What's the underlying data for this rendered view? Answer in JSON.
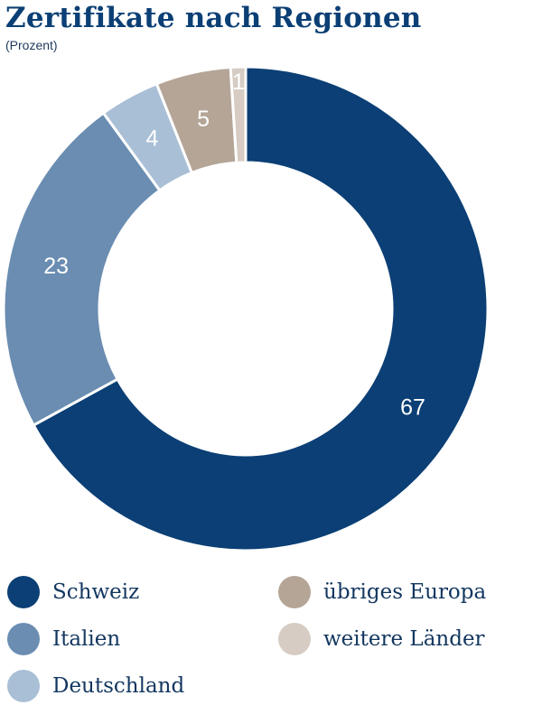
{
  "chart_data": {
    "type": "pie",
    "style": "donut",
    "title": "Zertifikate nach Regionen",
    "subtitle": "(Prozent)",
    "categories": [
      "Schweiz",
      "Italien",
      "Deutschland",
      "übriges Europa",
      "weitere Länder"
    ],
    "values": [
      67,
      23,
      4,
      5,
      1
    ],
    "colors": [
      "#0b3f75",
      "#6a8db1",
      "#a9bfd6",
      "#b4a597",
      "#d6ccc3"
    ],
    "legend_position": "bottom",
    "legend_order": [
      "Schweiz",
      "übriges Europa",
      "Italien",
      "weitere Länder",
      "Deutschland"
    ]
  }
}
